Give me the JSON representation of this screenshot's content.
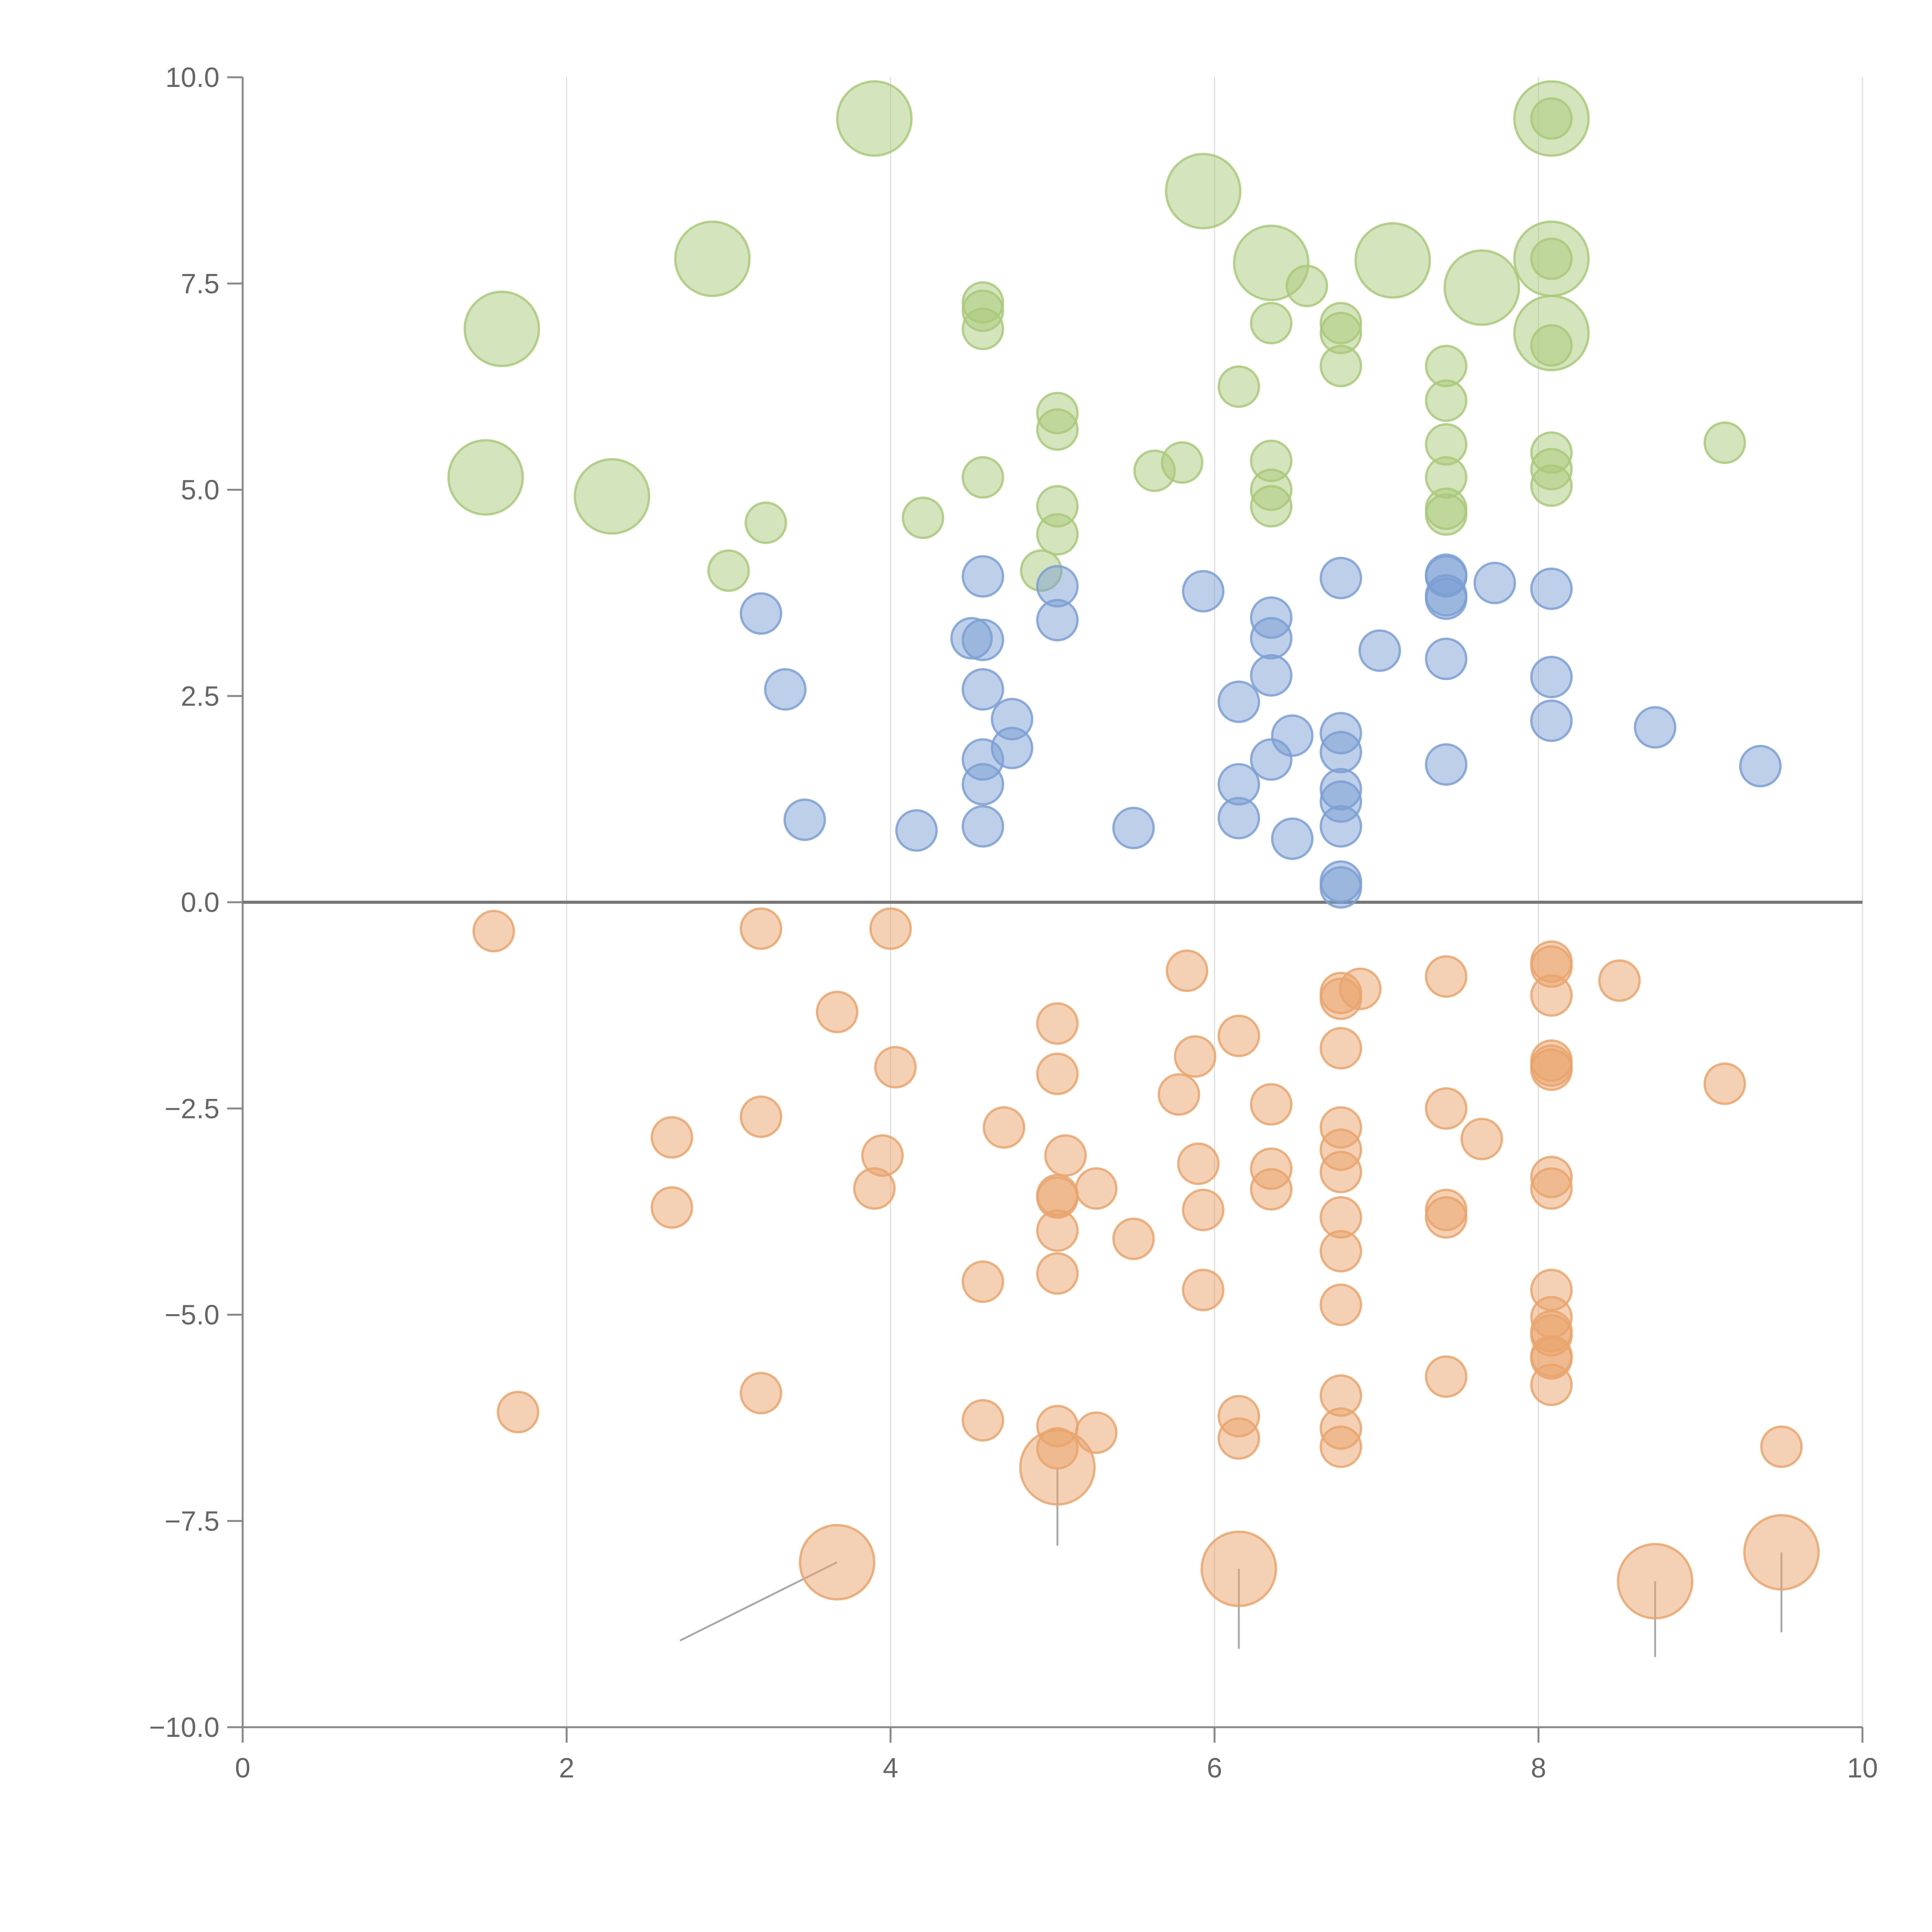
{
  "chart_data": {
    "type": "scatter",
    "title": "",
    "xlabel": "",
    "ylabel": "",
    "xlim": [
      0,
      10
    ],
    "ylim": [
      -10,
      10
    ],
    "grid": {
      "vertical": true,
      "horizontal": false
    },
    "x_ticks": [
      0,
      2,
      4,
      6,
      8,
      10
    ],
    "x_tick_labels": [
      "0",
      "2",
      "4",
      "6",
      "8",
      "10"
    ],
    "y_ticks": [
      10,
      7.5,
      5,
      2.5,
      0,
      -2.5,
      -5,
      -7.5,
      -10
    ],
    "y_tick_labels": [
      "10.0",
      "7.5",
      "5.0",
      "2.5",
      "0.0",
      "−2.5",
      "−5.0",
      "−7.5",
      "−10.0"
    ],
    "reference_line_y": 0,
    "colors": {
      "green": "#a9c97a",
      "blue": "#7b9fd4",
      "orange": "#e9a46c",
      "axis": "#888888",
      "grid": "#dddddd",
      "callout": "#aaaaaa"
    },
    "series": [
      {
        "color_key": "green",
        "points": [
          [
            1.5,
            5.15,
            2
          ],
          [
            1.6,
            6.95,
            2
          ],
          [
            2.28,
            4.92,
            2
          ],
          [
            2.9,
            7.8,
            2
          ],
          [
            3.9,
            9.5,
            2
          ],
          [
            5.93,
            8.62,
            2
          ],
          [
            6.35,
            7.75,
            2
          ],
          [
            7.1,
            7.78,
            2
          ],
          [
            7.65,
            7.45,
            2
          ],
          [
            8.08,
            9.5,
            2
          ],
          [
            8.08,
            7.8,
            2
          ],
          [
            8.08,
            6.9,
            2
          ],
          [
            3.0,
            4.02,
            1
          ],
          [
            3.23,
            4.6,
            1
          ],
          [
            4.2,
            4.66,
            1
          ],
          [
            4.57,
            7.27,
            1
          ],
          [
            4.57,
            7.17,
            1
          ],
          [
            4.57,
            6.95,
            1
          ],
          [
            4.57,
            5.15,
            1
          ],
          [
            4.93,
            4.02,
            1
          ],
          [
            5.03,
            5.93,
            1
          ],
          [
            5.03,
            5.73,
            1
          ],
          [
            5.03,
            4.8,
            1
          ],
          [
            5.03,
            4.46,
            1
          ],
          [
            5.63,
            5.23,
            1
          ],
          [
            5.8,
            5.33,
            1
          ],
          [
            6.15,
            6.25,
            1
          ],
          [
            6.35,
            7.02,
            1
          ],
          [
            6.35,
            5.35,
            1
          ],
          [
            6.35,
            5.0,
            1
          ],
          [
            6.35,
            4.8,
            1
          ],
          [
            6.57,
            7.47,
            1
          ],
          [
            6.78,
            7.02,
            1
          ],
          [
            6.78,
            6.9,
            1
          ],
          [
            6.78,
            6.5,
            1
          ],
          [
            7.43,
            6.5,
            1
          ],
          [
            7.43,
            6.08,
            1
          ],
          [
            7.43,
            5.55,
            1
          ],
          [
            7.43,
            5.15,
            1
          ],
          [
            7.43,
            4.77,
            1
          ],
          [
            7.43,
            4.7,
            1
          ],
          [
            8.08,
            9.5,
            1
          ],
          [
            8.08,
            7.8,
            1
          ],
          [
            8.08,
            6.75,
            1
          ],
          [
            8.08,
            5.45,
            1
          ],
          [
            8.08,
            5.25,
            1
          ],
          [
            8.08,
            5.05,
            1
          ],
          [
            9.15,
            5.57,
            1
          ]
        ]
      },
      {
        "color_key": "blue",
        "points": [
          [
            3.2,
            3.5,
            1
          ],
          [
            3.35,
            2.58,
            1
          ],
          [
            3.47,
            1.0,
            1
          ],
          [
            4.16,
            0.87,
            1
          ],
          [
            4.5,
            3.2,
            1
          ],
          [
            4.57,
            3.95,
            1
          ],
          [
            4.57,
            3.18,
            1
          ],
          [
            4.57,
            2.58,
            1
          ],
          [
            4.57,
            1.73,
            1
          ],
          [
            4.57,
            1.43,
            1
          ],
          [
            4.57,
            0.92,
            1
          ],
          [
            4.75,
            2.22,
            1
          ],
          [
            4.75,
            1.87,
            1
          ],
          [
            5.03,
            3.83,
            1
          ],
          [
            5.03,
            3.42,
            1
          ],
          [
            5.5,
            0.9,
            1
          ],
          [
            5.93,
            3.77,
            1
          ],
          [
            6.15,
            2.43,
            1
          ],
          [
            6.15,
            1.43,
            1
          ],
          [
            6.15,
            1.02,
            1
          ],
          [
            6.35,
            3.45,
            1
          ],
          [
            6.35,
            3.2,
            1
          ],
          [
            6.35,
            2.75,
            1
          ],
          [
            6.35,
            1.73,
            1
          ],
          [
            6.48,
            0.77,
            1
          ],
          [
            6.48,
            2.02,
            1
          ],
          [
            6.78,
            3.93,
            1
          ],
          [
            6.78,
            2.05,
            1
          ],
          [
            6.78,
            1.82,
            1
          ],
          [
            6.78,
            1.37,
            1
          ],
          [
            6.78,
            1.22,
            1
          ],
          [
            6.78,
            0.92,
            1
          ],
          [
            6.78,
            0.25,
            1
          ],
          [
            6.78,
            0.18,
            1
          ],
          [
            7.02,
            3.05,
            1
          ],
          [
            7.43,
            3.97,
            1
          ],
          [
            7.43,
            3.95,
            1
          ],
          [
            7.43,
            3.72,
            1
          ],
          [
            7.43,
            3.68,
            1
          ],
          [
            7.43,
            2.95,
            1
          ],
          [
            7.43,
            1.67,
            1
          ],
          [
            7.73,
            3.87,
            1
          ],
          [
            8.08,
            3.8,
            1
          ],
          [
            8.08,
            2.73,
            1
          ],
          [
            8.08,
            2.2,
            1
          ],
          [
            8.72,
            2.12,
            1
          ],
          [
            9.37,
            1.65,
            1
          ]
        ]
      },
      {
        "color_key": "orange",
        "points": [
          [
            3.67,
            -8.0,
            2
          ],
          [
            5.03,
            -6.85,
            2
          ],
          [
            6.15,
            -8.08,
            2
          ],
          [
            8.72,
            -8.23,
            2
          ],
          [
            9.5,
            -7.88,
            2
          ],
          [
            1.55,
            -0.35,
            1
          ],
          [
            1.7,
            -6.18,
            1
          ],
          [
            2.65,
            -2.85,
            1
          ],
          [
            2.65,
            -3.7,
            1
          ],
          [
            3.2,
            -0.32,
            1
          ],
          [
            3.2,
            -2.6,
            1
          ],
          [
            3.2,
            -5.95,
            1
          ],
          [
            3.67,
            -1.33,
            1
          ],
          [
            3.9,
            -3.47,
            1
          ],
          [
            3.95,
            -3.07,
            1
          ],
          [
            4.0,
            -0.32,
            1
          ],
          [
            4.03,
            -2.0,
            1
          ],
          [
            4.57,
            -4.6,
            1
          ],
          [
            4.57,
            -6.28,
            1
          ],
          [
            4.7,
            -2.73,
            1
          ],
          [
            5.03,
            -1.47,
            1
          ],
          [
            5.03,
            -2.08,
            1
          ],
          [
            5.03,
            -3.55,
            1
          ],
          [
            5.03,
            -3.58,
            1
          ],
          [
            5.03,
            -3.98,
            1
          ],
          [
            5.03,
            -4.5,
            1
          ],
          [
            5.03,
            -6.35,
            1
          ],
          [
            5.03,
            -6.62,
            1
          ],
          [
            5.08,
            -3.07,
            1
          ],
          [
            5.27,
            -3.47,
            1
          ],
          [
            5.27,
            -6.43,
            1
          ],
          [
            5.5,
            -4.08,
            1
          ],
          [
            5.78,
            -2.33,
            1
          ],
          [
            5.83,
            -0.83,
            1
          ],
          [
            5.88,
            -1.87,
            1
          ],
          [
            5.9,
            -3.17,
            1
          ],
          [
            5.93,
            -3.73,
            1
          ],
          [
            5.93,
            -4.7,
            1
          ],
          [
            6.15,
            -1.62,
            1
          ],
          [
            6.15,
            -6.23,
            1
          ],
          [
            6.15,
            -6.5,
            1
          ],
          [
            6.35,
            -2.45,
            1
          ],
          [
            6.35,
            -3.23,
            1
          ],
          [
            6.35,
            -3.48,
            1
          ],
          [
            6.78,
            -1.1,
            1
          ],
          [
            6.78,
            -1.17,
            1
          ],
          [
            6.78,
            -1.77,
            1
          ],
          [
            6.78,
            -2.73,
            1
          ],
          [
            6.78,
            -3.0,
            1
          ],
          [
            6.78,
            -3.27,
            1
          ],
          [
            6.78,
            -3.82,
            1
          ],
          [
            6.78,
            -4.23,
            1
          ],
          [
            6.78,
            -4.88,
            1
          ],
          [
            6.78,
            -5.98,
            1
          ],
          [
            6.78,
            -6.38,
            1
          ],
          [
            6.78,
            -6.6,
            1
          ],
          [
            6.9,
            -1.05,
            1
          ],
          [
            7.43,
            -0.9,
            1
          ],
          [
            7.43,
            -2.5,
            1
          ],
          [
            7.43,
            -3.73,
            1
          ],
          [
            7.43,
            -3.82,
            1
          ],
          [
            7.43,
            -5.75,
            1
          ],
          [
            7.65,
            -2.87,
            1
          ],
          [
            8.08,
            -0.72,
            1
          ],
          [
            8.08,
            -0.78,
            1
          ],
          [
            8.08,
            -1.13,
            1
          ],
          [
            8.08,
            -1.92,
            1
          ],
          [
            8.08,
            -1.98,
            1
          ],
          [
            8.08,
            -2.03,
            1
          ],
          [
            8.08,
            -3.33,
            1
          ],
          [
            8.08,
            -3.47,
            1
          ],
          [
            8.08,
            -4.7,
            1
          ],
          [
            8.08,
            -5.03,
            1
          ],
          [
            8.08,
            -5.2,
            1
          ],
          [
            8.08,
            -5.25,
            1
          ],
          [
            8.08,
            -5.5,
            1
          ],
          [
            8.08,
            -5.53,
            1
          ],
          [
            8.08,
            -5.85,
            1
          ],
          [
            8.5,
            -0.95,
            1
          ],
          [
            9.15,
            -2.2,
            1
          ],
          [
            9.5,
            -6.6,
            1
          ]
        ]
      }
    ],
    "callouts": [
      {
        "from": [
          3.67,
          -8.0
        ],
        "to": [
          2.7,
          -8.95
        ]
      },
      {
        "from": [
          5.03,
          -6.85
        ],
        "to": [
          5.03,
          -7.8
        ]
      },
      {
        "from": [
          6.15,
          -8.08
        ],
        "to": [
          6.15,
          -9.05
        ]
      },
      {
        "from": [
          8.72,
          -8.23
        ],
        "to": [
          8.72,
          -9.15
        ]
      },
      {
        "from": [
          9.5,
          -7.88
        ],
        "to": [
          9.5,
          -8.85
        ]
      }
    ]
  }
}
